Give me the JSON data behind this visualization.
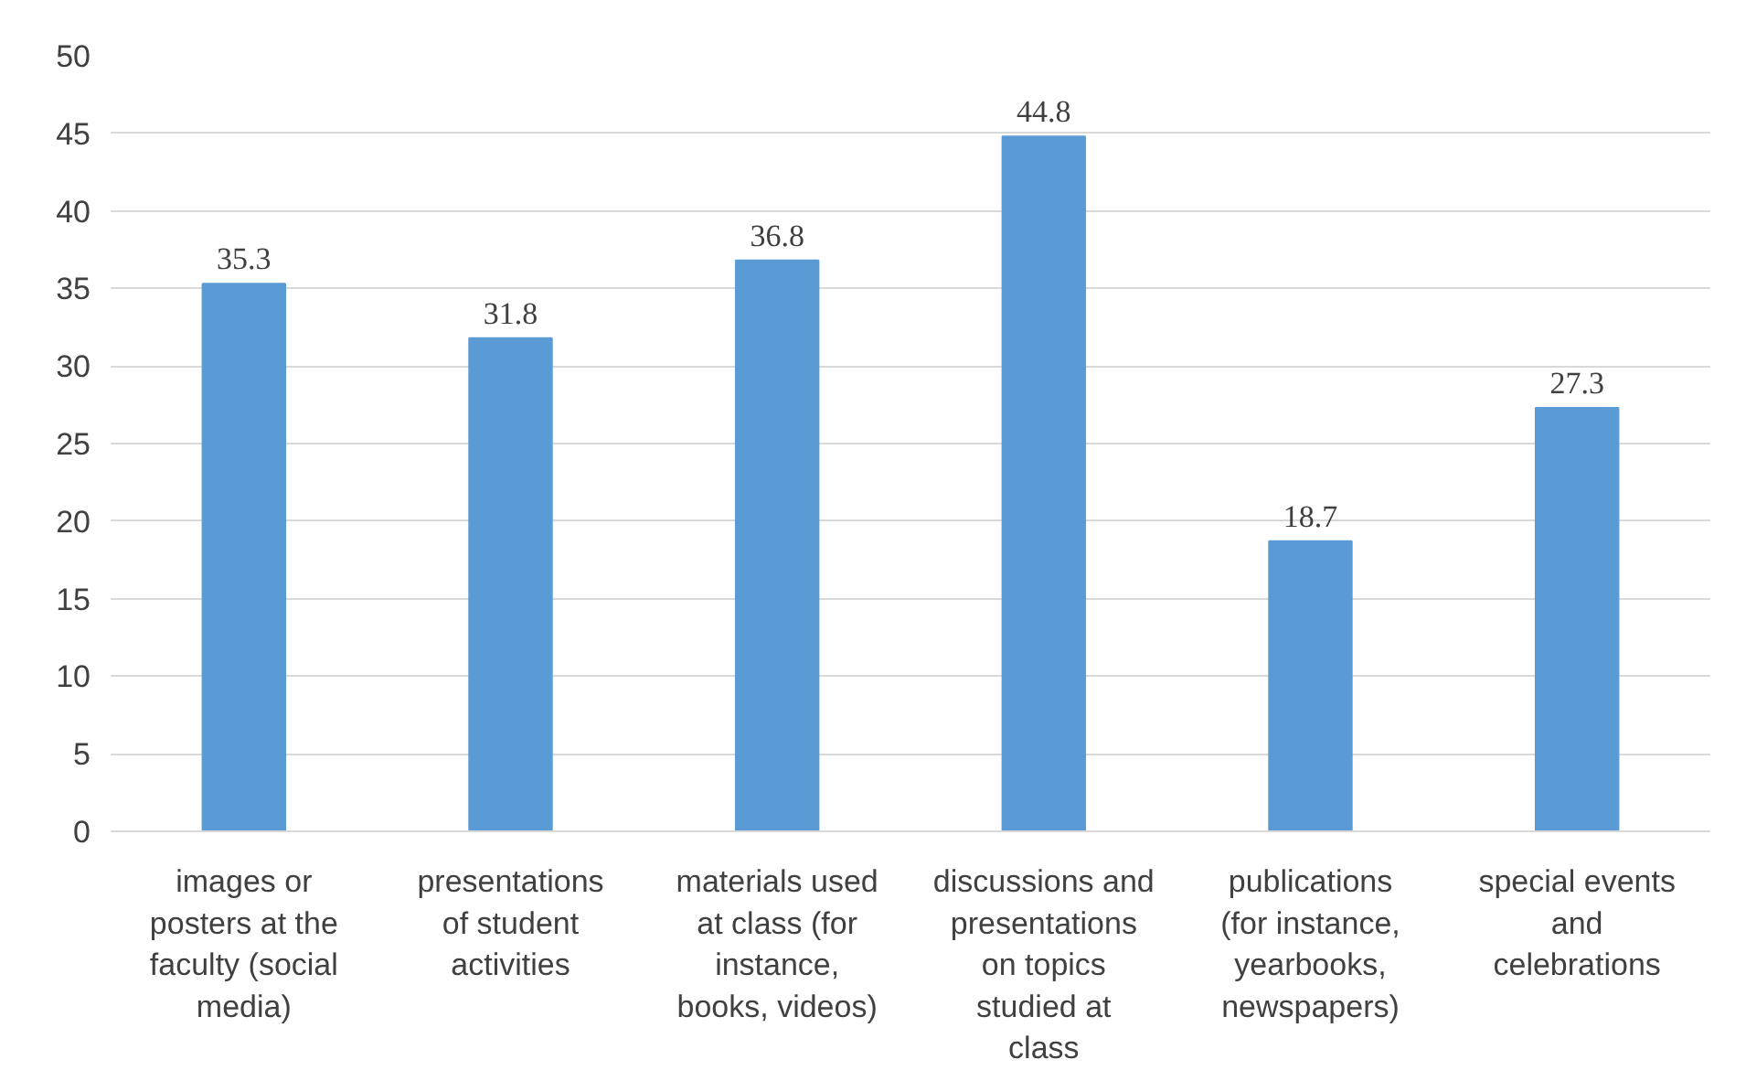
{
  "chart_data": {
    "type": "bar",
    "categories": [
      "images or posters at the faculty (social media)",
      "presentations of student activities",
      "materials used at class (for instance, books, videos)",
      "discussions and presentations on topics studied at class",
      "publications (for instance, yearbooks, newspapers)",
      "special events and celebrations"
    ],
    "values": [
      35.3,
      31.8,
      36.8,
      44.8,
      18.7,
      27.3
    ],
    "color": "#5b9bd5",
    "ylim": [
      0,
      50
    ],
    "yticks": [
      0,
      5,
      10,
      15,
      20,
      25,
      30,
      35,
      40,
      45,
      50
    ],
    "grid": "y",
    "data_labels": true
  }
}
